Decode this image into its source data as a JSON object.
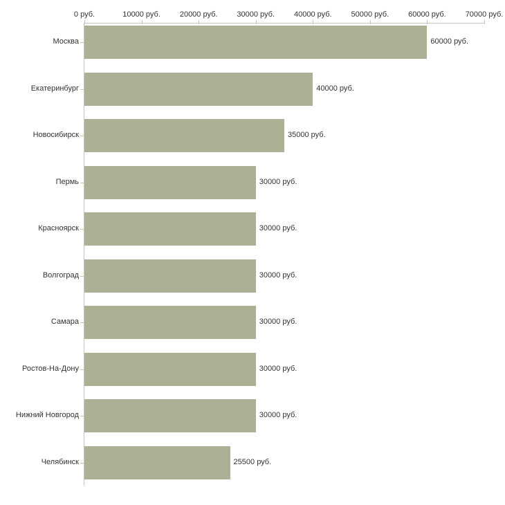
{
  "chart_data": {
    "type": "bar",
    "orientation": "horizontal",
    "title": "",
    "categories": [
      "Москва",
      "Екатеринбург",
      "Новосибирск",
      "Пермь",
      "Красноярск",
      "Волгоград",
      "Самара",
      "Ростов-На-Дону",
      "Нижний Новгород",
      "Челябинск"
    ],
    "values": [
      60000,
      40000,
      35000,
      30000,
      30000,
      30000,
      30000,
      30000,
      30000,
      25500
    ],
    "value_labels": [
      "60000 руб.",
      "40000 руб.",
      "35000 руб.",
      "30000 руб.",
      "30000 руб.",
      "30000 руб.",
      "30000 руб.",
      "30000 руб.",
      "30000 руб.",
      "25500 руб."
    ],
    "x_ticks": [
      0,
      10000,
      20000,
      30000,
      40000,
      50000,
      60000,
      70000
    ],
    "x_tick_labels": [
      "0 руб.",
      "10000 руб.",
      "20000 руб.",
      "30000 руб.",
      "40000 руб.",
      "50000 руб.",
      "60000 руб.",
      "70000 руб."
    ],
    "xlim": [
      0,
      70000
    ],
    "unit": "руб.",
    "xlabel": "",
    "ylabel": "",
    "grid": false,
    "legend": false,
    "axis_position": "top",
    "colors": {
      "bar": "#abb194",
      "axis_line": "#c6c6c3",
      "tick": "#c8c8a0",
      "text": "#333333"
    }
  }
}
